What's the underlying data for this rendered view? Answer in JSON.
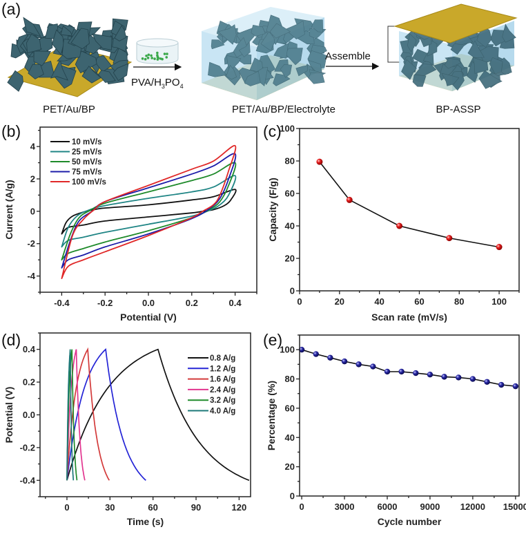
{
  "panel_a": {
    "label": "(a)",
    "stage1_label": "PET/Au/BP",
    "reagent_label": "PVA/H3PO4",
    "reagent_parts": [
      "PVA/H",
      "3",
      "PO",
      "4"
    ],
    "stage2_label": "PET/Au/BP/Electrolyte",
    "assemble_label": "Assemble",
    "stage3_label": "BP-ASSP",
    "colors": {
      "gold": "#c9a82a",
      "black_phosphorus": "#3d6470",
      "electrolyte": "#bfe0f2",
      "ions": "#3aa84a"
    }
  },
  "chart_data": [
    {
      "panel_label": "(b)",
      "type": "line",
      "xlabel": "Potential (V)",
      "ylabel": "Current (A/g)",
      "xlim": [
        -0.5,
        0.5
      ],
      "ylim": [
        -5,
        5.2
      ],
      "xticks": [
        -0.4,
        -0.2,
        0.0,
        0.2,
        0.4
      ],
      "xtick_labels": [
        "-0.4",
        "-0.2",
        "0.0",
        "0.2",
        "0.4"
      ],
      "yticks": [
        -4,
        -2,
        0,
        2,
        4
      ],
      "ytick_labels": [
        "-4",
        "-2",
        "0",
        "2",
        "4"
      ],
      "grid": false,
      "legend": "top-left",
      "series": [
        {
          "name": "10 mV/s",
          "color": "#111111",
          "points": [
            [
              -0.4,
              -1.4
            ],
            [
              -0.38,
              -0.7
            ],
            [
              -0.35,
              -0.3
            ],
            [
              -0.3,
              -0.05
            ],
            [
              -0.25,
              0.1
            ],
            [
              -0.2,
              0.2
            ],
            [
              0,
              0.4
            ],
            [
              0.2,
              0.7
            ],
            [
              0.3,
              0.9
            ],
            [
              0.4,
              1.35
            ],
            [
              0.38,
              0.7
            ],
            [
              0.35,
              0.35
            ],
            [
              0.3,
              0.1
            ],
            [
              0.25,
              0.0
            ],
            [
              0.2,
              -0.1
            ],
            [
              0,
              -0.35
            ],
            [
              -0.2,
              -0.6
            ],
            [
              -0.3,
              -0.85
            ],
            [
              -0.37,
              -1.0
            ],
            [
              -0.4,
              -1.4
            ]
          ]
        },
        {
          "name": "25 mV/s",
          "color": "#1f8585",
          "points": [
            [
              -0.4,
              -2.2
            ],
            [
              -0.37,
              -1.0
            ],
            [
              -0.33,
              -0.3
            ],
            [
              -0.28,
              0.05
            ],
            [
              -0.2,
              0.35
            ],
            [
              0,
              0.8
            ],
            [
              0.2,
              1.2
            ],
            [
              0.3,
              1.5
            ],
            [
              0.4,
              2.2
            ],
            [
              0.37,
              1.0
            ],
            [
              0.33,
              0.4
            ],
            [
              0.28,
              0.05
            ],
            [
              0.2,
              -0.3
            ],
            [
              0,
              -0.8
            ],
            [
              -0.2,
              -1.3
            ],
            [
              -0.3,
              -1.6
            ],
            [
              -0.37,
              -1.8
            ],
            [
              -0.4,
              -2.2
            ]
          ]
        },
        {
          "name": "50 mV/s",
          "color": "#1e8a2a",
          "points": [
            [
              -0.4,
              -3.0
            ],
            [
              -0.36,
              -1.4
            ],
            [
              -0.32,
              -0.4
            ],
            [
              -0.27,
              0.05
            ],
            [
              -0.2,
              0.5
            ],
            [
              0,
              1.2
            ],
            [
              0.2,
              1.9
            ],
            [
              0.3,
              2.3
            ],
            [
              0.4,
              3.0
            ],
            [
              0.37,
              1.6
            ],
            [
              0.33,
              0.6
            ],
            [
              0.28,
              0.1
            ],
            [
              0.2,
              -0.4
            ],
            [
              0,
              -1.2
            ],
            [
              -0.2,
              -1.9
            ],
            [
              -0.3,
              -2.3
            ],
            [
              -0.37,
              -2.6
            ],
            [
              -0.4,
              -3.0
            ]
          ]
        },
        {
          "name": "75 mV/s",
          "color": "#1c1ca8",
          "points": [
            [
              -0.4,
              -3.5
            ],
            [
              -0.36,
              -1.8
            ],
            [
              -0.32,
              -0.6
            ],
            [
              -0.26,
              0.0
            ],
            [
              -0.2,
              0.6
            ],
            [
              0,
              1.45
            ],
            [
              0.2,
              2.3
            ],
            [
              0.3,
              2.8
            ],
            [
              0.4,
              3.55
            ],
            [
              0.37,
              2.0
            ],
            [
              0.33,
              0.8
            ],
            [
              0.28,
              0.15
            ],
            [
              0.2,
              -0.45
            ],
            [
              0,
              -1.4
            ],
            [
              -0.2,
              -2.2
            ],
            [
              -0.3,
              -2.7
            ],
            [
              -0.37,
              -3.0
            ],
            [
              -0.4,
              -3.5
            ]
          ]
        },
        {
          "name": "100 mV/s",
          "color": "#e02828",
          "points": [
            [
              -0.4,
              -4.15
            ],
            [
              -0.35,
              -1.5
            ],
            [
              -0.3,
              -0.5
            ],
            [
              -0.25,
              0.1
            ],
            [
              -0.2,
              0.6
            ],
            [
              0,
              1.6
            ],
            [
              0.2,
              2.6
            ],
            [
              0.3,
              3.1
            ],
            [
              0.4,
              4.05
            ],
            [
              0.37,
              2.5
            ],
            [
              0.33,
              1.0
            ],
            [
              0.3,
              0.4
            ],
            [
              0.25,
              0.0
            ],
            [
              0.2,
              -0.4
            ],
            [
              0,
              -1.5
            ],
            [
              -0.2,
              -2.5
            ],
            [
              -0.3,
              -3.0
            ],
            [
              -0.37,
              -3.4
            ],
            [
              -0.4,
              -4.15
            ]
          ]
        }
      ]
    },
    {
      "panel_label": "(c)",
      "type": "line",
      "xlabel": "Scan rate (mV/s)",
      "ylabel": "Capacity (F/g)",
      "xlim": [
        0,
        110
      ],
      "ylim": [
        0,
        100
      ],
      "xticks": [
        0,
        20,
        40,
        60,
        80,
        100
      ],
      "xtick_labels": [
        "0",
        "20",
        "40",
        "60",
        "80",
        "100"
      ],
      "yticks": [
        0,
        20,
        40,
        60,
        80,
        100
      ],
      "ytick_labels": [
        "0",
        "20",
        "40",
        "60",
        "80",
        "100"
      ],
      "grid": false,
      "series": [
        {
          "color": "#111111",
          "marker_color": "#e01b1b",
          "x": [
            10,
            25,
            50,
            75,
            100
          ],
          "y": [
            79.5,
            56,
            40,
            32.5,
            27
          ]
        }
      ]
    },
    {
      "panel_label": "(d)",
      "type": "line",
      "xlabel": "Time (s)",
      "ylabel": "Potential (V)",
      "xlim": [
        -18.75,
        128
      ],
      "ylim": [
        -0.5,
        0.5
      ],
      "xticks": [
        0,
        30,
        60,
        90,
        120
      ],
      "xtick_labels": [
        "0",
        "30",
        "60",
        "90",
        "120"
      ],
      "yticks": [
        -0.4,
        -0.2,
        0.0,
        0.2,
        0.4
      ],
      "ytick_labels": [
        "-0.4",
        "-0.2",
        "0.0",
        "0.2",
        "0.4"
      ],
      "grid": false,
      "legend": "top-right",
      "series": [
        {
          "name": "0.8 A/g",
          "color": "#111111",
          "charge_end_s": 63.5,
          "discharge_end_s": 127
        },
        {
          "name": "1.2 A/g",
          "color": "#2424d6",
          "charge_end_s": 27,
          "discharge_end_s": 55
        },
        {
          "name": "1.6 A/g",
          "color": "#d33a3a",
          "charge_end_s": 14.5,
          "discharge_end_s": 29.5
        },
        {
          "name": "2.4 A/g",
          "color": "#e2358f",
          "charge_end_s": 6.5,
          "discharge_end_s": 12.5
        },
        {
          "name": "3.2 A/g",
          "color": "#1f8a2a",
          "charge_end_s": 3.5,
          "discharge_end_s": 7
        },
        {
          "name": "4.0 A/g",
          "color": "#1c7878",
          "charge_end_s": 2.3,
          "discharge_end_s": 4.5
        }
      ]
    },
    {
      "panel_label": "(e)",
      "type": "line",
      "xlabel": "Cycle number",
      "ylabel": "Percentage (%)",
      "xlim": [
        -150,
        15250
      ],
      "ylim": [
        0,
        110
      ],
      "xticks": [
        0,
        3000,
        6000,
        9000,
        12000,
        15000
      ],
      "xtick_labels": [
        "0",
        "3000",
        "6000",
        "9000",
        "12000",
        "15000"
      ],
      "yticks": [
        0,
        20,
        40,
        60,
        80,
        100
      ],
      "ytick_labels": [
        "0",
        "20",
        "40",
        "60",
        "80",
        "100"
      ],
      "grid": false,
      "series": [
        {
          "color": "#111111",
          "marker_color": "#1a1a8c",
          "x": [
            0,
            1000,
            2000,
            3000,
            4000,
            5000,
            6000,
            7000,
            8000,
            9000,
            10000,
            11000,
            12000,
            13000,
            14000,
            15000
          ],
          "y": [
            100,
            97,
            94.5,
            92,
            90,
            88.5,
            85,
            85,
            84,
            83,
            81.5,
            81,
            80,
            78,
            76,
            75
          ]
        }
      ]
    }
  ]
}
